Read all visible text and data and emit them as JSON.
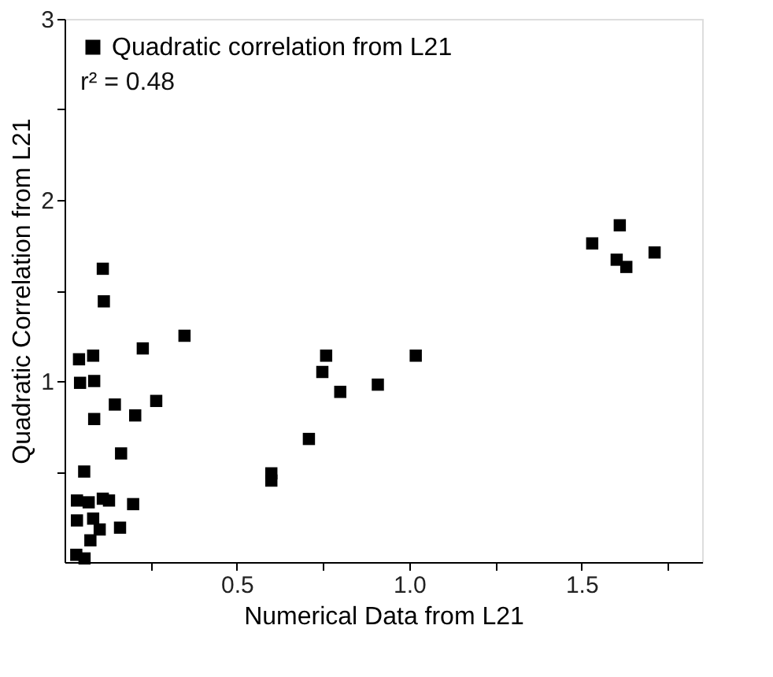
{
  "chart_data": {
    "type": "scatter",
    "xlabel": "Numerical Data from L21",
    "ylabel": "Quadratic Correlation from L21",
    "annotations": [
      "r² = 0.48"
    ],
    "xlim": [
      0,
      1.85
    ],
    "ylim": [
      0,
      3
    ],
    "xticks": [
      {
        "value": 0.25,
        "label": null
      },
      {
        "value": 0.5,
        "label": "0.5"
      },
      {
        "value": 0.75,
        "label": null
      },
      {
        "value": 1.0,
        "label": "1.0"
      },
      {
        "value": 1.25,
        "label": null
      },
      {
        "value": 1.5,
        "label": "1.5"
      },
      {
        "value": 1.75,
        "label": null
      }
    ],
    "yticks": [
      {
        "value": 0.5,
        "label": null
      },
      1,
      {
        "value": 1.5,
        "label": null
      },
      2,
      {
        "value": 2.5,
        "label": null
      },
      3
    ],
    "marker": "square",
    "legend": "top left",
    "grid": false,
    "series": [
      {
        "name": "Quadratic correlation from L21",
        "color": "#000000",
        "x": [
          0.111,
          0.114,
          0.348,
          0.227,
          0.042,
          0.083,
          0.045,
          0.086,
          0.146,
          0.266,
          0.086,
          0.205,
          0.164,
          0.057,
          0.036,
          0.07,
          0.111,
          0.129,
          0.199,
          0.036,
          0.083,
          0.102,
          0.161,
          0.075,
          0.034,
          0.058,
          0.6,
          0.6,
          0.709,
          0.748,
          0.759,
          0.8,
          0.909,
          1.019,
          1.531,
          1.611,
          1.602,
          1.63,
          1.712
        ],
        "values": [
          1.62,
          1.44,
          1.25,
          1.18,
          1.12,
          1.14,
          0.99,
          1.0,
          0.87,
          0.89,
          0.79,
          0.81,
          0.6,
          0.5,
          0.34,
          0.33,
          0.35,
          0.34,
          0.32,
          0.23,
          0.24,
          0.18,
          0.19,
          0.12,
          0.04,
          0.02,
          0.49,
          0.45,
          0.68,
          1.05,
          1.14,
          0.94,
          0.98,
          1.14,
          1.76,
          1.86,
          1.67,
          1.63,
          1.71
        ]
      }
    ]
  }
}
